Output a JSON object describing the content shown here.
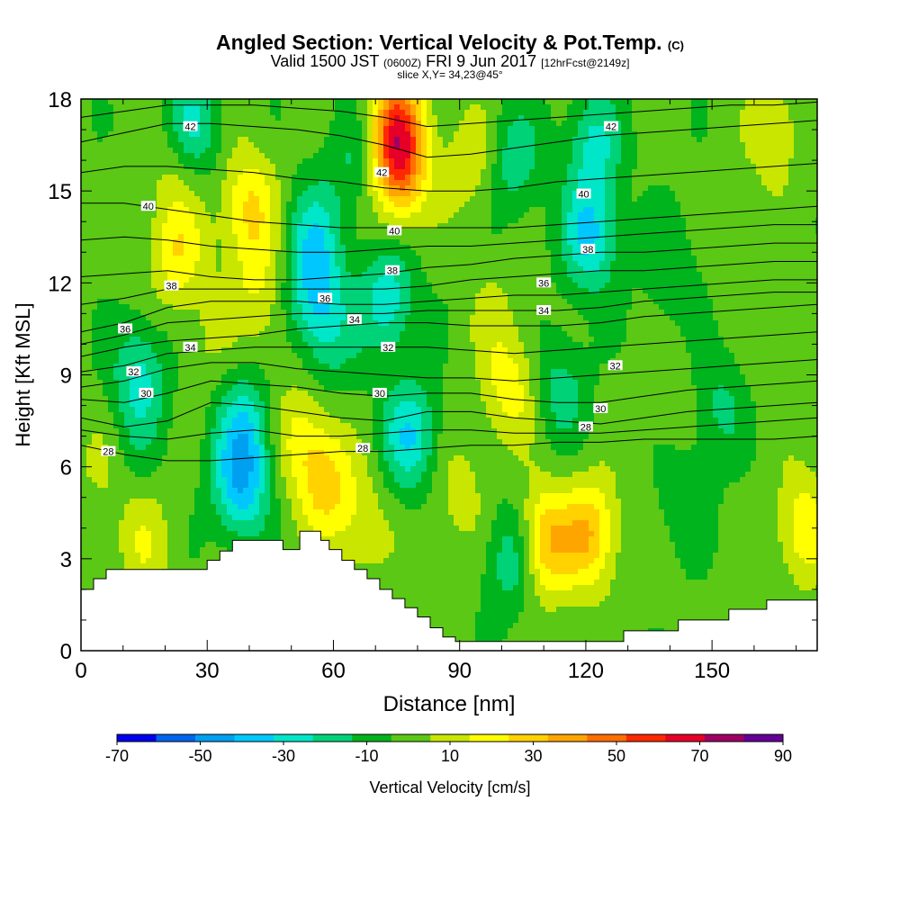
{
  "header": {
    "title": "Angled Section: Vertical Velocity & Pot.Temp.",
    "title_unit": "(C)",
    "subtitle_main": "Valid 1500 JST",
    "subtitle_z": "(0600Z)",
    "subtitle_date": "FRI 9 Jun 2017",
    "subtitle_fcst": "[12hrFcst@2149z]",
    "slice": "slice X,Y= 34,23@45°"
  },
  "chart_data": {
    "type": "heatmap",
    "title": "Angled Section: Vertical Velocity & Pot.Temp.",
    "xlabel": "Distance [nm]",
    "ylabel": "Height [Kft MSL]",
    "xlim": [
      0,
      175
    ],
    "ylim": [
      0,
      18
    ],
    "x_ticks": [
      0,
      30,
      60,
      90,
      120,
      150
    ],
    "y_ticks": [
      0,
      3,
      6,
      9,
      12,
      15,
      18
    ],
    "colorbar": {
      "label": "Vertical Velocity [cm/s]",
      "tick_labels": [
        -70,
        -50,
        -30,
        -10,
        10,
        30,
        50,
        70,
        90
      ],
      "bounds": [
        -70,
        -60,
        -50,
        -40,
        -30,
        -20,
        -10,
        0,
        10,
        20,
        30,
        40,
        50,
        60,
        70,
        80,
        90
      ],
      "colors": [
        "#0000ee",
        "#0064f0",
        "#00a0f0",
        "#00c8ff",
        "#00e6c8",
        "#00d278",
        "#00b41e",
        "#5ac814",
        "#c8e600",
        "#ffff00",
        "#ffd200",
        "#ffa500",
        "#ff6e00",
        "#ff2800",
        "#e60028",
        "#a00064",
        "#640096"
      ]
    },
    "velocity_features": [
      {
        "x": 23,
        "y": 13,
        "value": 25
      },
      {
        "x": 23,
        "y": 16,
        "value": 15
      },
      {
        "x": 40,
        "y": 14.5,
        "value": 28
      },
      {
        "x": 42,
        "y": 12,
        "value": 15
      },
      {
        "x": 75,
        "y": 17,
        "value": 55
      },
      {
        "x": 76,
        "y": 15.5,
        "value": 35
      },
      {
        "x": 93,
        "y": 16,
        "value": 15
      },
      {
        "x": 165,
        "y": 17,
        "value": 15
      },
      {
        "x": 158,
        "y": 14,
        "value": 5
      },
      {
        "x": 26,
        "y": 17,
        "value": -30
      },
      {
        "x": 56,
        "y": 11.5,
        "value": -30
      },
      {
        "x": 55,
        "y": 13.5,
        "value": -25
      },
      {
        "x": 73,
        "y": 11.5,
        "value": -30
      },
      {
        "x": 103,
        "y": 16,
        "value": -20
      },
      {
        "x": 121,
        "y": 13.5,
        "value": -35
      },
      {
        "x": 122,
        "y": 16.5,
        "value": -25
      },
      {
        "x": 65,
        "y": 16,
        "value": -15
      },
      {
        "x": 140,
        "y": 12.5,
        "value": -12
      },
      {
        "x": 14,
        "y": 9,
        "value": -25
      },
      {
        "x": 38,
        "y": 5.5,
        "value": -40
      },
      {
        "x": 39,
        "y": 7.5,
        "value": -25
      },
      {
        "x": 78,
        "y": 7,
        "value": -32
      },
      {
        "x": 114,
        "y": 8.5,
        "value": -18
      },
      {
        "x": 103,
        "y": 3,
        "value": -25
      },
      {
        "x": 152,
        "y": 8,
        "value": -15
      },
      {
        "x": 144,
        "y": 5,
        "value": -12
      },
      {
        "x": 60,
        "y": 10,
        "value": -12
      },
      {
        "x": 13,
        "y": 7,
        "value": -8
      },
      {
        "x": 110,
        "y": 3.5,
        "value": 40
      },
      {
        "x": 121,
        "y": 3.8,
        "value": 35
      },
      {
        "x": 58,
        "y": 5.5,
        "value": 30
      },
      {
        "x": 52,
        "y": 7,
        "value": 18
      },
      {
        "x": 102,
        "y": 8.5,
        "value": 22
      },
      {
        "x": 67,
        "y": 4,
        "value": 15
      },
      {
        "x": 90,
        "y": 5,
        "value": 12
      },
      {
        "x": 172,
        "y": 4,
        "value": 25
      },
      {
        "x": 15,
        "y": 3.5,
        "value": 15
      },
      {
        "x": 5,
        "y": 6,
        "value": 8
      },
      {
        "x": 30,
        "y": 10,
        "value": 8
      },
      {
        "x": 98,
        "y": 11,
        "value": 8
      },
      {
        "x": 140,
        "y": 8,
        "value": 5
      },
      {
        "x": 165,
        "y": 9,
        "value": 5
      },
      {
        "x": 45,
        "y": 10,
        "value": 5
      }
    ],
    "terrain": [
      [
        0,
        2
      ],
      [
        3,
        2
      ],
      [
        3,
        2.35
      ],
      [
        6,
        2.35
      ],
      [
        6,
        2.65
      ],
      [
        30,
        2.65
      ],
      [
        30,
        2.95
      ],
      [
        33,
        2.95
      ],
      [
        33,
        3.25
      ],
      [
        36,
        3.25
      ],
      [
        36,
        3.6
      ],
      [
        48,
        3.6
      ],
      [
        48,
        3.3
      ],
      [
        52,
        3.3
      ],
      [
        52,
        3.9
      ],
      [
        57,
        3.9
      ],
      [
        57,
        3.6
      ],
      [
        59,
        3.6
      ],
      [
        59,
        3.3
      ],
      [
        62,
        3.3
      ],
      [
        62,
        2.95
      ],
      [
        65,
        2.95
      ],
      [
        65,
        2.65
      ],
      [
        68,
        2.65
      ],
      [
        68,
        2.35
      ],
      [
        71,
        2.35
      ],
      [
        71,
        2.0
      ],
      [
        74,
        2.0
      ],
      [
        74,
        1.7
      ],
      [
        77,
        1.7
      ],
      [
        77,
        1.4
      ],
      [
        80,
        1.4
      ],
      [
        80,
        1.1
      ],
      [
        83,
        1.1
      ],
      [
        83,
        0.75
      ],
      [
        86,
        0.75
      ],
      [
        86,
        0.45
      ],
      [
        89,
        0.45
      ],
      [
        89,
        0.3
      ],
      [
        129,
        0.3
      ],
      [
        129,
        0.65
      ],
      [
        142,
        0.65
      ],
      [
        142,
        1.0
      ],
      [
        154,
        1.0
      ],
      [
        154,
        1.35
      ],
      [
        163,
        1.35
      ],
      [
        163,
        1.65
      ],
      [
        175,
        1.65
      ]
    ],
    "theta_contours": [
      {
        "level": 28,
        "label": "28",
        "label_at": [
          6.5,
          6.5
        ],
        "y": [
          6.7,
          6.4,
          6.2,
          6.2,
          6.3,
          6.4,
          6.5,
          6.5,
          6.6,
          6.7,
          6.7,
          6.8,
          6.8,
          6.9,
          6.9,
          6.9,
          6.9,
          7.0
        ]
      },
      {
        "level": 28,
        "label": "28",
        "label_at": [
          67,
          6.6
        ],
        "y": null
      },
      {
        "level": 28,
        "label": "28",
        "label_at": [
          120,
          7.3
        ],
        "y": null
      },
      {
        "level": 30,
        "label": "30",
        "label_at": [
          15.5,
          8.4
        ],
        "y": [
          7.6,
          7.3,
          7.5,
          8.1,
          8.0,
          7.8,
          7.6,
          7.5,
          7.8,
          7.8,
          7.6,
          7.5,
          7.4,
          7.6,
          7.8,
          7.9,
          8.0,
          8.1
        ]
      },
      {
        "level": 30,
        "label": "30",
        "label_at": [
          71,
          8.4
        ],
        "y": null
      },
      {
        "level": 30,
        "label": "30",
        "label_at": [
          123.5,
          7.9
        ],
        "y": null
      },
      {
        "level": 32,
        "label": "32",
        "label_at": [
          12.5,
          9.1
        ],
        "y": [
          8.6,
          8.8,
          9.2,
          9.4,
          9.4,
          9.2,
          9.1,
          9.0,
          8.9,
          8.9,
          8.8,
          8.9,
          9.0,
          9.1,
          9.2,
          9.3,
          9.4,
          9.5
        ]
      },
      {
        "level": 32,
        "label": "32",
        "label_at": [
          73,
          9.9
        ],
        "y": null
      },
      {
        "level": 32,
        "label": "32",
        "label_at": [
          127,
          9.3
        ],
        "y": null
      },
      {
        "level": 34,
        "label": "34",
        "label_at": [
          26,
          9.9
        ],
        "y": [
          9.6,
          9.9,
          10.1,
          10.2,
          10.3,
          10.5,
          10.6,
          10.7,
          10.7,
          10.6,
          10.6,
          10.6,
          10.7,
          10.9,
          11.0,
          11.1,
          11.2,
          11.3
        ]
      },
      {
        "level": 34,
        "label": "34",
        "label_at": [
          65,
          10.8
        ],
        "y": null
      },
      {
        "level": 34,
        "label": "34",
        "label_at": [
          110,
          11.1
        ],
        "y": null
      },
      {
        "level": 36,
        "label": "36",
        "label_at": [
          10.5,
          10.5
        ],
        "y": [
          10.4,
          10.7,
          11.2,
          11.4,
          11.4,
          11.4,
          11.3,
          11.3,
          11.4,
          11.5,
          11.6,
          11.6,
          11.7,
          11.8,
          11.9,
          12.0,
          12.1,
          12.1
        ]
      },
      {
        "level": 36,
        "label": "36",
        "label_at": [
          58,
          11.5
        ],
        "y": null
      },
      {
        "level": 36,
        "label": "36",
        "label_at": [
          110,
          12.0
        ],
        "y": null
      },
      {
        "level": 38,
        "label": "38",
        "label_at": [
          21.5,
          11.9
        ],
        "y": [
          12.2,
          12.3,
          12.4,
          12.2,
          12.1,
          12.1,
          12.2,
          12.3,
          12.5,
          12.6,
          12.8,
          12.9,
          13.0,
          13.0,
          13.1,
          13.2,
          13.3,
          13.3
        ]
      },
      {
        "level": 38,
        "label": "38",
        "label_at": [
          74,
          12.4
        ],
        "y": null
      },
      {
        "level": 38,
        "label": "38",
        "label_at": [
          120.5,
          13.1
        ],
        "y": null
      },
      {
        "level": 40,
        "label": "40",
        "label_at": [
          16,
          14.5
        ],
        "y": [
          14.6,
          14.6,
          14.4,
          14.2,
          14.0,
          13.9,
          13.8,
          13.8,
          13.8,
          13.8,
          13.8,
          13.9,
          14.0,
          14.1,
          14.2,
          14.3,
          14.4,
          14.5
        ]
      },
      {
        "level": 40,
        "label": "40",
        "label_at": [
          74.5,
          13.7
        ],
        "y": null
      },
      {
        "level": 40,
        "label": "40",
        "label_at": [
          119.5,
          14.9
        ],
        "y": null
      },
      {
        "level": 42,
        "label": "42",
        "label_at": [
          26,
          17.1
        ],
        "y": [
          16.6,
          16.9,
          17.2,
          17.2,
          17.1,
          17.0,
          16.8,
          16.5,
          16.1,
          16.2,
          16.4,
          16.6,
          16.8,
          16.9,
          17.0,
          17.1,
          17.2,
          17.3
        ]
      },
      {
        "level": 42,
        "label": "42",
        "label_at": [
          71.5,
          15.6
        ],
        "y": null
      },
      {
        "level": 42,
        "label": "42",
        "label_at": [
          126,
          17.1
        ],
        "y": null
      },
      {
        "level": 29,
        "label": "",
        "label_at": null,
        "y": [
          7.2,
          7.0,
          6.9,
          7.1,
          7.2,
          7.0,
          7.0,
          7.1,
          7.2,
          7.2,
          7.1,
          7.1,
          7.1,
          7.2,
          7.3,
          7.4,
          7.5,
          7.6
        ]
      },
      {
        "level": 31,
        "label": "",
        "label_at": null,
        "y": [
          8.2,
          8.1,
          8.4,
          8.8,
          8.7,
          8.6,
          8.4,
          8.3,
          8.4,
          8.4,
          8.2,
          8.1,
          8.1,
          8.3,
          8.5,
          8.6,
          8.7,
          8.8
        ]
      },
      {
        "level": 33,
        "label": "",
        "label_at": null,
        "y": [
          9.1,
          9.3,
          9.7,
          9.8,
          9.9,
          9.9,
          9.9,
          9.9,
          9.9,
          9.8,
          9.7,
          9.8,
          9.9,
          10.0,
          10.1,
          10.2,
          10.3,
          10.4
        ]
      },
      {
        "level": 35,
        "label": "",
        "label_at": null,
        "y": [
          10.0,
          10.3,
          10.7,
          10.8,
          10.9,
          11.0,
          11.0,
          11.0,
          11.1,
          11.1,
          11.1,
          11.1,
          11.2,
          11.4,
          11.5,
          11.6,
          11.7,
          11.7
        ]
      },
      {
        "level": 37,
        "label": "",
        "label_at": null,
        "y": [
          11.3,
          11.5,
          11.8,
          11.8,
          11.8,
          11.8,
          11.8,
          11.8,
          11.9,
          12.1,
          12.2,
          12.3,
          12.4,
          12.4,
          12.5,
          12.6,
          12.7,
          12.7
        ]
      },
      {
        "level": 39,
        "label": "",
        "label_at": null,
        "y": [
          13.4,
          13.5,
          13.4,
          13.2,
          13.1,
          13.0,
          13.0,
          13.1,
          13.2,
          13.2,
          13.3,
          13.4,
          13.5,
          13.6,
          13.7,
          13.8,
          13.9,
          13.9
        ]
      },
      {
        "level": 41,
        "label": "",
        "label_at": null,
        "y": [
          15.6,
          15.8,
          15.8,
          15.7,
          15.6,
          15.4,
          15.3,
          15.1,
          15.0,
          15.0,
          15.1,
          15.3,
          15.4,
          15.5,
          15.6,
          15.7,
          15.8,
          15.9
        ]
      },
      {
        "level": 43,
        "label": "",
        "label_at": null,
        "y": [
          17.4,
          17.6,
          17.8,
          17.8,
          17.8,
          17.7,
          17.6,
          17.4,
          17.1,
          17.2,
          17.3,
          17.4,
          17.5,
          17.6,
          17.7,
          17.8,
          17.8,
          17.9
        ]
      }
    ]
  }
}
